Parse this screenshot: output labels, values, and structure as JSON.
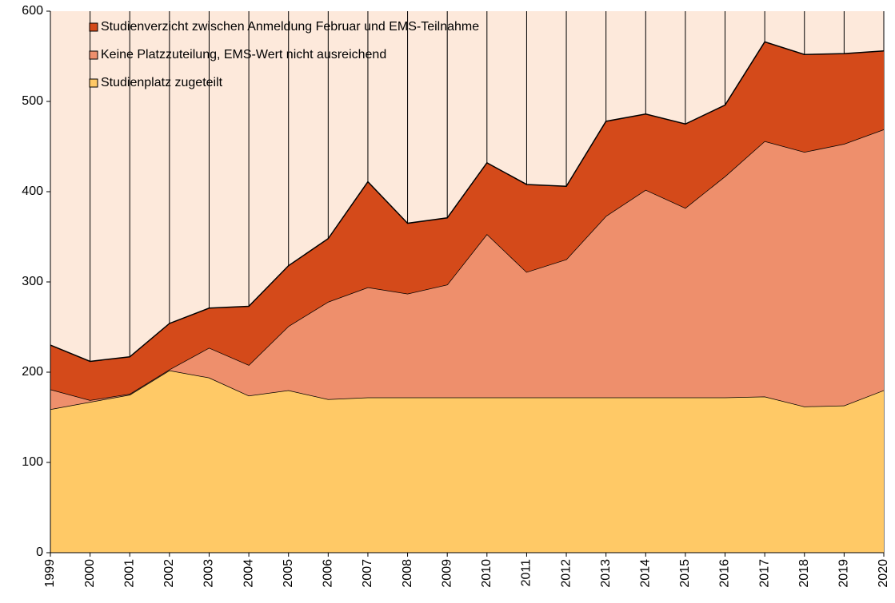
{
  "chart_data": {
    "type": "stacked-area",
    "categories": [
      "1999",
      "2000",
      "2001",
      "2002",
      "2003",
      "2004",
      "2005",
      "2006",
      "2007",
      "2008",
      "2009",
      "2010",
      "2011",
      "2012",
      "2013",
      "2014",
      "2015",
      "2016",
      "2017",
      "2018",
      "2019",
      "2020"
    ],
    "series": [
      {
        "name": "Studienplatz zugeteilt",
        "color": "#ffc966",
        "values": [
          159,
          167,
          175,
          202,
          194,
          174,
          180,
          170,
          172,
          172,
          172,
          172,
          172,
          172,
          172,
          172,
          172,
          172,
          173,
          162,
          163,
          180
        ]
      },
      {
        "name": "Keine Platzzuteilung, EMS-Wert nicht ausreichend",
        "color": "#ee8f6c",
        "values": [
          22,
          2,
          1,
          1,
          33,
          34,
          71,
          108,
          122,
          115,
          125,
          181,
          139,
          153,
          201,
          230,
          210,
          245,
          283,
          282,
          290,
          289
        ]
      },
      {
        "name": "Studienverzicht zwischen Anmeldung Februar und EMS-Teilnahme",
        "color": "#d44a1a",
        "values": [
          49,
          43,
          41,
          51,
          44,
          65,
          67,
          70,
          117,
          78,
          74,
          79,
          97,
          81,
          105,
          84,
          93,
          79,
          110,
          108,
          100,
          87
        ]
      }
    ],
    "ylim": [
      0,
      600
    ],
    "yticks": [
      0,
      100,
      200,
      300,
      400,
      500,
      600
    ],
    "plot_background": "#fde9db",
    "x_grid": true,
    "legend": "top-left"
  }
}
